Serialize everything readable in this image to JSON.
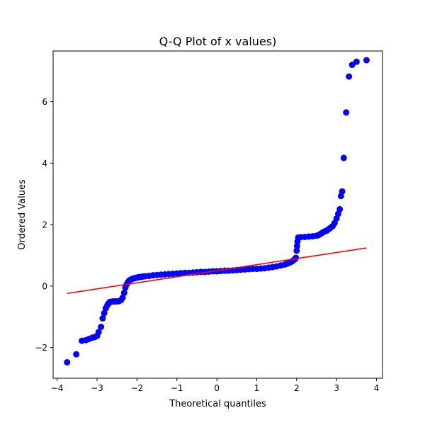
{
  "chart_data": {
    "type": "scatter",
    "title": "Q-Q Plot of x values)",
    "xlabel": "Theoretical quantiles",
    "ylabel": "Ordered Values",
    "xlim": [
      -4.1,
      4.15
    ],
    "ylim": [
      -3.0,
      7.65
    ],
    "x_ticks": [
      {
        "value": -4,
        "label": "−4"
      },
      {
        "value": -3,
        "label": "−3"
      },
      {
        "value": -2,
        "label": "−2"
      },
      {
        "value": -1,
        "label": "−1"
      },
      {
        "value": 0,
        "label": "0"
      },
      {
        "value": 1,
        "label": "1"
      },
      {
        "value": 2,
        "label": "2"
      },
      {
        "value": 3,
        "label": "3"
      },
      {
        "value": 4,
        "label": "4"
      }
    ],
    "y_ticks": [
      {
        "value": -2,
        "label": "−2"
      },
      {
        "value": 0,
        "label": "0"
      },
      {
        "value": 2,
        "label": "2"
      },
      {
        "value": 4,
        "label": "4"
      },
      {
        "value": 6,
        "label": "6"
      }
    ],
    "grid": false,
    "colors": {
      "points": "#0000ff",
      "fit_line": "#ff0000"
    },
    "fit_line": {
      "x": [
        -3.75,
        3.75
      ],
      "y": [
        -0.24,
        1.24
      ]
    },
    "series": [
      {
        "x": [
          -3.75,
          -3.52,
          -3.38,
          -3.28,
          -3.2,
          -3.12,
          -3.06,
          -3.0,
          -2.96,
          -2.9,
          -2.86,
          -2.82,
          -2.78,
          -2.74,
          -2.72,
          -2.7,
          -2.68,
          -2.64,
          -2.6,
          -2.55,
          -2.5,
          -2.45,
          -2.4,
          -2.36,
          -2.32,
          -2.29,
          -2.26,
          -2.23,
          -2.2,
          -2.17,
          -2.14,
          -2.11,
          -2.08,
          -2.05,
          -2.02,
          -1.98,
          -1.95,
          -1.9,
          -1.85,
          -1.8,
          -1.7,
          -1.6,
          -1.5,
          -1.4,
          -1.3,
          -1.2,
          -1.1,
          -1.0,
          -0.9,
          -0.8,
          -0.7,
          -0.6,
          -0.5,
          -0.4,
          -0.3,
          -0.2,
          -0.1,
          0.0,
          0.1,
          0.2,
          0.3,
          0.4,
          0.5,
          0.6,
          0.7,
          0.8,
          0.9,
          1.0,
          1.1,
          1.2,
          1.3,
          1.4,
          1.5,
          1.6,
          1.7,
          1.76,
          1.82,
          1.86,
          1.9,
          1.93,
          1.96,
          1.98,
          2.0,
          2.01,
          2.02,
          2.04,
          2.1,
          2.2,
          2.3,
          2.4,
          2.5,
          2.55,
          2.6,
          2.65,
          2.7,
          2.75,
          2.8,
          2.85,
          2.9,
          2.95,
          3.0,
          3.04,
          3.08,
          3.11,
          3.14,
          3.18,
          3.24,
          3.31,
          3.39,
          3.5,
          3.75
        ],
        "y": [
          -2.48,
          -2.22,
          -1.78,
          -1.76,
          -1.72,
          -1.68,
          -1.66,
          -1.62,
          -1.5,
          -1.33,
          -1.05,
          -0.88,
          -0.72,
          -0.62,
          -0.58,
          -0.55,
          -0.52,
          -0.51,
          -0.5,
          -0.5,
          -0.5,
          -0.49,
          -0.46,
          -0.38,
          -0.22,
          -0.05,
          0.05,
          0.12,
          0.17,
          0.2,
          0.22,
          0.24,
          0.25,
          0.26,
          0.27,
          0.28,
          0.29,
          0.3,
          0.31,
          0.32,
          0.33,
          0.35,
          0.36,
          0.37,
          0.38,
          0.39,
          0.4,
          0.41,
          0.42,
          0.43,
          0.43,
          0.44,
          0.45,
          0.46,
          0.46,
          0.47,
          0.48,
          0.48,
          0.49,
          0.5,
          0.5,
          0.51,
          0.52,
          0.53,
          0.54,
          0.55,
          0.56,
          0.56,
          0.57,
          0.58,
          0.6,
          0.62,
          0.64,
          0.67,
          0.7,
          0.73,
          0.76,
          0.79,
          0.82,
          0.85,
          0.88,
          0.92,
          1.15,
          1.3,
          1.45,
          1.58,
          1.59,
          1.6,
          1.61,
          1.62,
          1.64,
          1.66,
          1.7,
          1.74,
          1.78,
          1.8,
          1.85,
          1.9,
          1.95,
          2.05,
          2.2,
          2.35,
          2.5,
          2.93,
          3.08,
          4.17,
          5.65,
          6.82,
          7.2,
          7.3,
          7.35
        ]
      }
    ]
  }
}
